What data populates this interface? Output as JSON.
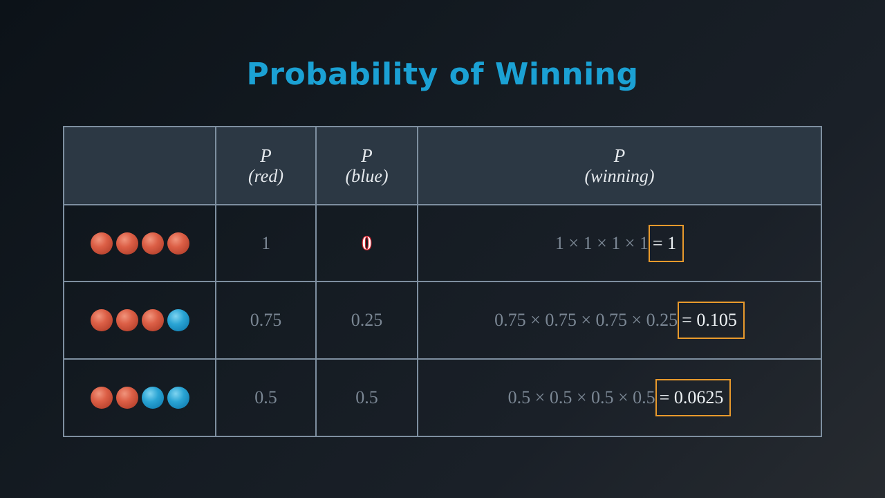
{
  "title": "Probability of Winning",
  "colors": {
    "title": "#1ba1d4",
    "red_ball": "#dc5f46",
    "blue_ball": "#2aa4d4",
    "highlight_box": "#e99a2c",
    "grid_line": "#7e8fa0",
    "header_bg": "#2c3844"
  },
  "table": {
    "headers": [
      {
        "p": "P",
        "sub": "(red)"
      },
      {
        "p": "P",
        "sub": "(blue)"
      },
      {
        "p": "P",
        "sub": "(winning)"
      }
    ],
    "rows": [
      {
        "balls": [
          "red",
          "red",
          "red",
          "red"
        ],
        "p_red": "1",
        "p_blue": "0",
        "formula": "1 × 1 × 1 × 1",
        "result": "= 1"
      },
      {
        "balls": [
          "red",
          "red",
          "red",
          "blue"
        ],
        "p_red": "0.75",
        "p_blue": "0.25",
        "formula": "0.75 × 0.75 × 0.75 × 0.25",
        "result": "= 0.105"
      },
      {
        "balls": [
          "red",
          "red",
          "blue",
          "blue"
        ],
        "p_red": "0.5",
        "p_blue": "0.5",
        "formula": "0.5 × 0.5 × 0.5 × 0.5",
        "result": "= 0.0625"
      }
    ]
  }
}
